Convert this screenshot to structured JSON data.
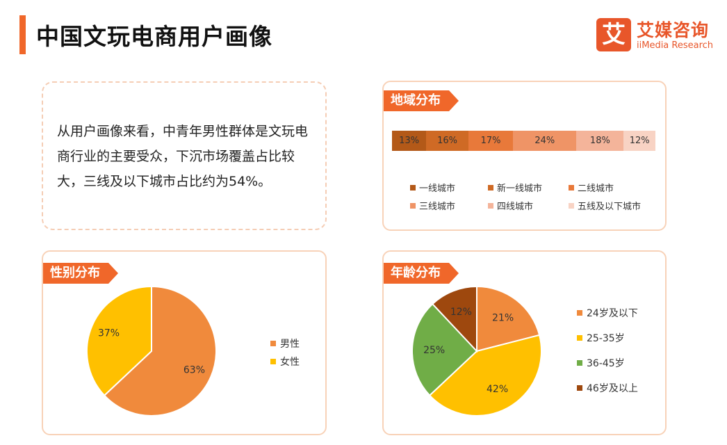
{
  "page": {
    "title": "中国文玩电商用户画像"
  },
  "logo": {
    "icon_char": "艾",
    "name_cn": "艾媒咨询",
    "name_en": "iiMedia Research",
    "color": "#e8562a"
  },
  "intro": {
    "text": "从用户画像来看，中青年男性群体是文玩电商行业的主要受众，下沉市场覆盖占比较大，三线及以下城市占比约为54%。"
  },
  "sections": {
    "region": "地域分布",
    "gender": "性别分布",
    "age": "年龄分布"
  },
  "chart_data": [
    {
      "id": "region",
      "type": "bar",
      "orientation": "horizontal-stacked-100",
      "title": "地域分布",
      "series": [
        {
          "name": "一线城市",
          "value": 13,
          "label": "13%",
          "color": "#b35918"
        },
        {
          "name": "新一线城市",
          "value": 16,
          "label": "16%",
          "color": "#cf6a25"
        },
        {
          "name": "二线城市",
          "value": 17,
          "label": "17%",
          "color": "#e8793a"
        },
        {
          "name": "三线城市",
          "value": 24,
          "label": "24%",
          "color": "#ef9466"
        },
        {
          "name": "四线城市",
          "value": 18,
          "label": "18%",
          "color": "#f4b49a"
        },
        {
          "name": "五线及以下城市",
          "value": 12,
          "label": "12%",
          "color": "#f8d3c4"
        }
      ],
      "legend": "bottom"
    },
    {
      "id": "gender",
      "type": "pie",
      "title": "性别分布",
      "slices": [
        {
          "name": "男性",
          "value": 63,
          "label": "63%",
          "color": "#f08a3c"
        },
        {
          "name": "女性",
          "value": 37,
          "label": "37%",
          "color": "#ffc000"
        }
      ],
      "legend": "right"
    },
    {
      "id": "age",
      "type": "pie",
      "title": "年龄分布",
      "slices": [
        {
          "name": "24岁及以下",
          "value": 21,
          "label": "21%",
          "color": "#f08a3c"
        },
        {
          "name": "25-35岁",
          "value": 42,
          "label": "42%",
          "color": "#ffc000"
        },
        {
          "name": "36-45岁",
          "value": 25,
          "label": "25%",
          "color": "#70ad47"
        },
        {
          "name": "46岁及以上",
          "value": 12,
          "label": "12%",
          "color": "#9e480e"
        }
      ],
      "legend": "right"
    }
  ]
}
